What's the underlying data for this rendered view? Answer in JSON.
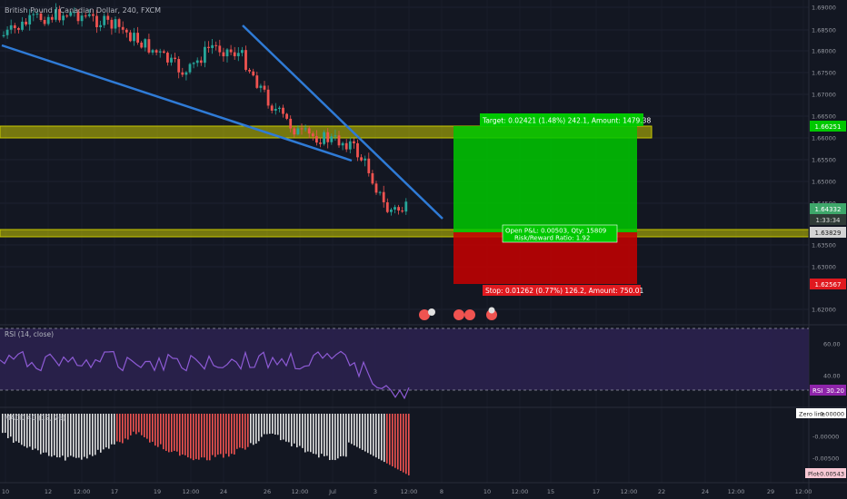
{
  "header": {
    "symbol_title": "British Pound / Canadian Dollar, 240, FXCM"
  },
  "colors": {
    "background": "#131722",
    "up_candle": "#26a69a",
    "down_candle": "#ef5350",
    "trendline": "#2f7bd6",
    "zone": "#c8c800",
    "target_box": "#00c800",
    "stop_box": "#c80000",
    "rsi_line": "#8e5bd6",
    "rsi_band": "#2d2250"
  },
  "chart_data": [
    {
      "type": "candlestick",
      "title": "British Pound / Canadian Dollar, 240, FXCM",
      "y_ticks": [
        "1.69000",
        "1.68500",
        "1.68000",
        "1.67500",
        "1.67000",
        "1.66500",
        "1.66000",
        "1.65500",
        "1.65000",
        "1.64500",
        "1.63500",
        "1.63000",
        "1.62000"
      ],
      "x_ticks": [
        "10",
        "12",
        "12:00",
        "17",
        "19",
        "12:00",
        "24",
        "26",
        "12:00",
        "Jul",
        "3",
        "12:00",
        "8",
        "10",
        "12:00",
        "15",
        "17",
        "12:00",
        "22",
        "24",
        "12:00",
        "29",
        "12:00"
      ],
      "price_labels": {
        "target": "1.66251",
        "current": "1.64332",
        "countdown": "1:33:34",
        "entry": "1.63829",
        "stop": "1.62567"
      },
      "position": {
        "target_text": "Target: 0.02421 (1.48%) 242.1, Amount: 1479.38",
        "pnl_text": "Open P&L: 0.00503, Qty: 15809",
        "ratio_text": "Risk/Reward Ratio: 1.92",
        "stop_text": "Stop: 0.01262 (0.77%) 126.2, Amount: 750.01"
      },
      "ohlc_summary": {
        "start_close": 1.684,
        "end_close": 1.6433,
        "high": 1.69,
        "low": 1.6405
      }
    },
    {
      "type": "line",
      "title": "RSI (14, close)",
      "y_ticks": [
        "60.00",
        "40.00",
        "30.00"
      ],
      "current_label": "RSI",
      "current_value": "30.20",
      "upper_band": 70,
      "lower_band": 30
    },
    {
      "type": "bar",
      "title": "MACD 4C (12, 26)",
      "y_ticks": [
        "-0.00000",
        "-0.00500"
      ],
      "zero_line_label": "Zero line",
      "zero_line_value": "0.00000",
      "plot_label": "Plot",
      "plot_value": "-0.00543"
    }
  ]
}
